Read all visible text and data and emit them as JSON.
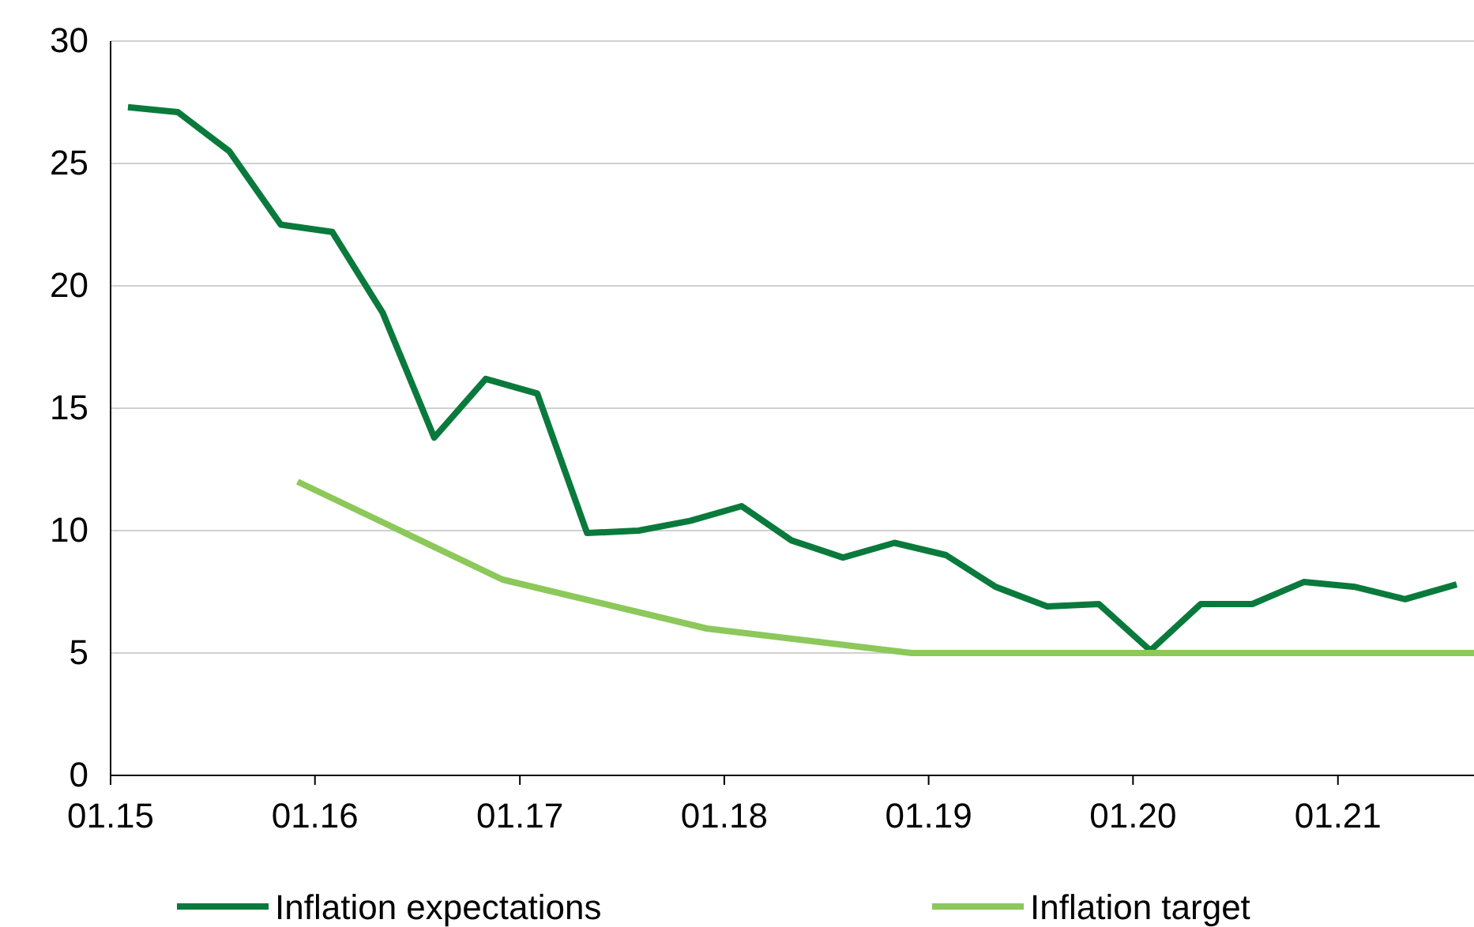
{
  "chart_data": {
    "type": "line",
    "xlim": [
      "2015-01",
      "2021-09"
    ],
    "xticks": [
      {
        "value": "2015-01",
        "label": "01.15"
      },
      {
        "value": "2016-01",
        "label": "01.16"
      },
      {
        "value": "2017-01",
        "label": "01.17"
      },
      {
        "value": "2018-01",
        "label": "01.18"
      },
      {
        "value": "2019-01",
        "label": "01.19"
      },
      {
        "value": "2020-01",
        "label": "01.20"
      },
      {
        "value": "2021-01",
        "label": "01.21"
      }
    ],
    "ylim": [
      0,
      30
    ],
    "yticks": [
      0,
      5,
      10,
      15,
      20,
      25,
      30
    ],
    "grid": "y",
    "legend": "bottom",
    "marker": "none",
    "line_style": "solid",
    "series": [
      {
        "name": "Inflation expectations",
        "color": "#0a7a3c",
        "x": [
          "2015-02",
          "2015-05",
          "2015-08",
          "2015-11",
          "2016-02",
          "2016-05",
          "2016-08",
          "2016-11",
          "2017-02",
          "2017-05",
          "2017-08",
          "2017-11",
          "2018-02",
          "2018-05",
          "2018-08",
          "2018-11",
          "2019-02",
          "2019-05",
          "2019-08",
          "2019-11",
          "2020-02",
          "2020-05",
          "2020-08",
          "2020-11",
          "2021-02",
          "2021-05",
          "2021-08"
        ],
        "values": [
          27.3,
          27.1,
          25.5,
          22.5,
          22.2,
          18.9,
          13.8,
          16.2,
          15.6,
          9.9,
          10.0,
          10.4,
          11.0,
          9.6,
          8.9,
          9.5,
          9.0,
          7.7,
          6.9,
          7.0,
          5.1,
          7.0,
          7.0,
          7.9,
          7.7,
          7.2,
          7.8
        ]
      },
      {
        "name": "Inflation target",
        "color": "#8cc85a",
        "x": [
          "2015-12",
          "2016-12",
          "2017-12",
          "2018-12",
          "2021-09"
        ],
        "values": [
          12,
          8,
          6,
          5,
          5
        ]
      }
    ]
  }
}
